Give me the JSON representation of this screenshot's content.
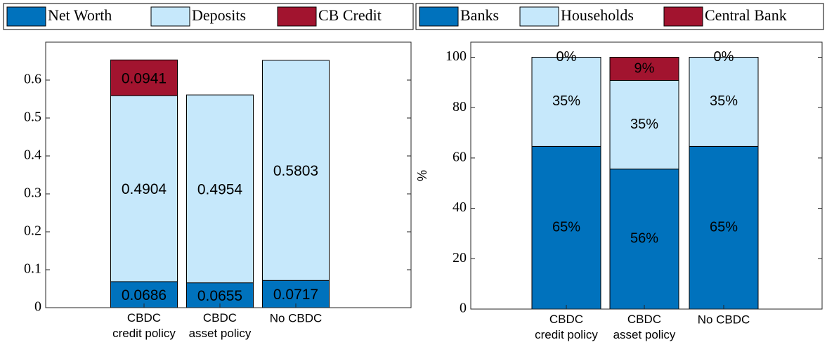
{
  "chart_data": [
    {
      "type": "bar",
      "stacked": true,
      "categories": [
        "CBDC\ncredit policy",
        "CBDC\nasset policy",
        "No CBDC"
      ],
      "series": [
        {
          "name": "Net Worth",
          "color": "#0072bd",
          "values": [
            0.0686,
            0.0655,
            0.0717
          ]
        },
        {
          "name": "Deposits",
          "color": "#c6e8fb",
          "values": [
            0.4904,
            0.4954,
            0.5803
          ]
        },
        {
          "name": "CB Credit",
          "color": "#a2142f",
          "values": [
            0.0941,
            0,
            0
          ]
        }
      ],
      "ylim": [
        0,
        0.7
      ],
      "yticks": [
        0,
        0.1,
        0.2,
        0.3,
        0.4,
        0.5,
        0.6
      ]
    },
    {
      "type": "bar",
      "stacked": true,
      "ylabel": "%",
      "categories": [
        "CBDC\ncredit policy",
        "CBDC\nasset policy",
        "No CBDC"
      ],
      "series": [
        {
          "name": "Banks",
          "color": "#0072bd",
          "values": [
            64.6,
            55.6,
            64.6
          ],
          "value_labels": [
            "65%",
            "56%",
            "65%"
          ]
        },
        {
          "name": "Households",
          "color": "#c6e8fb",
          "values": [
            35.4,
            35.2,
            35.4
          ],
          "value_labels": [
            "35%",
            "35%",
            "35%"
          ]
        },
        {
          "name": "Central Bank",
          "color": "#a2142f",
          "values": [
            0,
            9.2,
            0
          ],
          "value_labels": [
            "0%",
            "9%",
            "0%"
          ]
        }
      ],
      "ylim": [
        0,
        106
      ],
      "yticks": [
        0,
        20,
        40,
        60,
        80,
        100
      ]
    }
  ]
}
